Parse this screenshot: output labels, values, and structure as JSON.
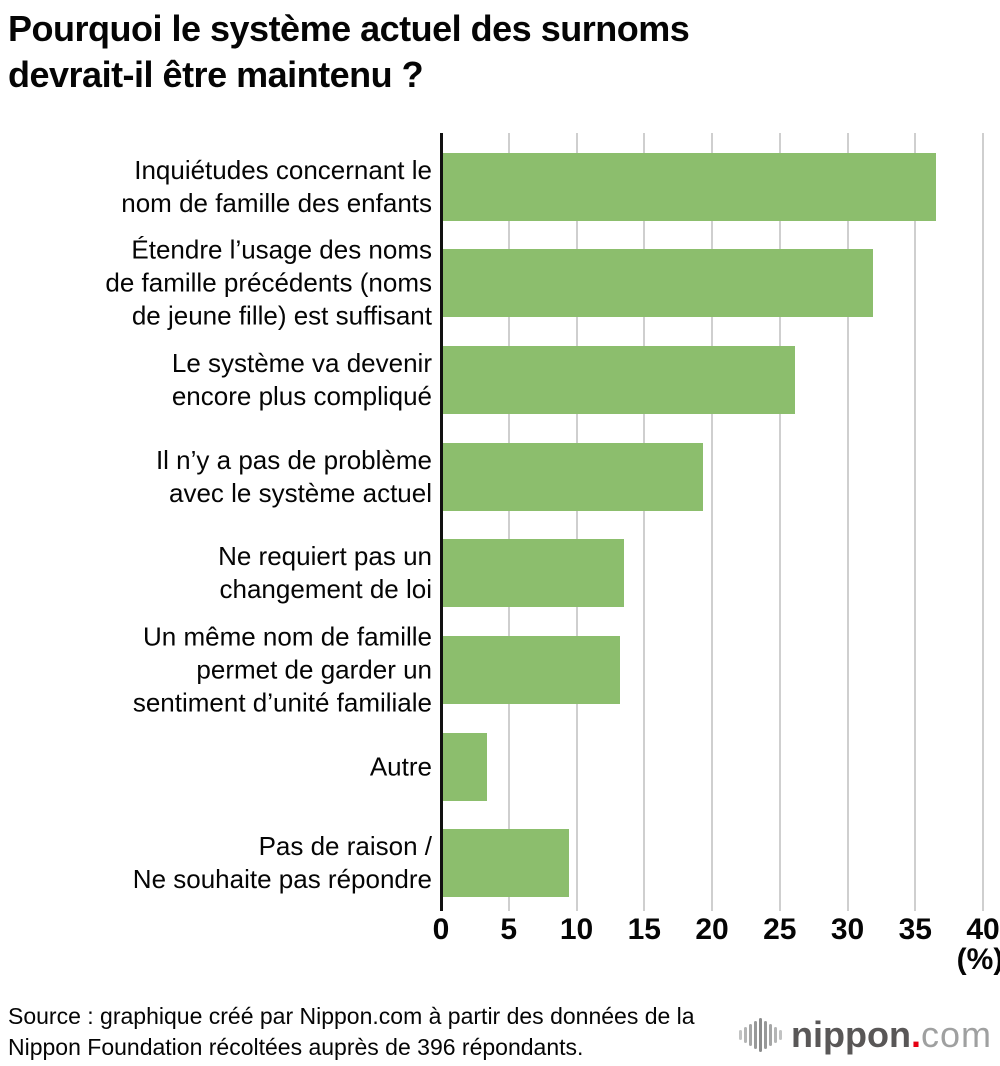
{
  "title_lines": [
    "Pourquoi le système actuel des surnoms",
    "devrait-il être maintenu ?"
  ],
  "chart_data": {
    "type": "bar",
    "orientation": "horizontal",
    "title": "Pourquoi le système actuel des surnoms devrait-il être maintenu ?",
    "xlabel": "(%)",
    "xlim": [
      0,
      40
    ],
    "x_ticks": [
      0,
      5,
      10,
      15,
      20,
      25,
      30,
      35,
      40
    ],
    "grid": true,
    "bar_color": "#8cbe6d",
    "categories": [
      [
        "Inquiétudes concernant le",
        "nom de famille des enfants"
      ],
      [
        "Étendre l’usage des noms",
        "de famille précédents (noms",
        "de jeune fille) est suffisant"
      ],
      [
        "Le système va devenir",
        "encore plus compliqué"
      ],
      [
        "Il n’y a pas de problème",
        "avec le système actuel"
      ],
      [
        "Ne requiert pas un",
        "changement de loi"
      ],
      [
        "Un même nom de famille",
        "permet de garder un",
        "sentiment d’unité familiale"
      ],
      [
        "Autre"
      ],
      [
        "Pas de raison /",
        "Ne souhaite pas répondre"
      ]
    ],
    "values": [
      36.4,
      31.8,
      26.0,
      19.2,
      13.4,
      13.1,
      3.3,
      9.3
    ]
  },
  "source_lines": [
    "Source : graphique créé par Nippon.com à partir des données de la",
    "Nippon Foundation récoltées auprès de 396 répondants."
  ],
  "logo": {
    "icon": "waveform-bars-icon",
    "brand": "nippon",
    "dot": ".",
    "tld": "com"
  }
}
